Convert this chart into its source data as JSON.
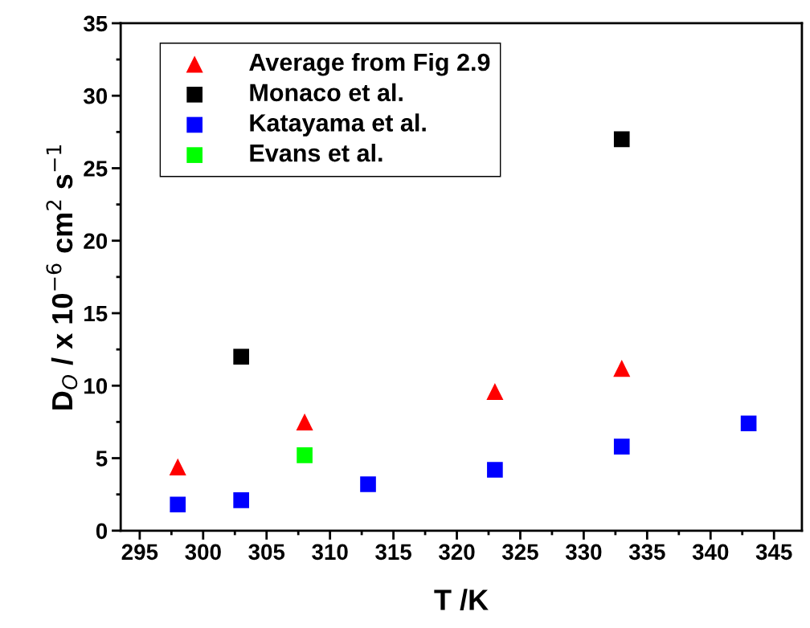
{
  "chart_data": {
    "type": "scatter",
    "xlabel": "T /K",
    "ylabel": "D$_{O}$ / x 10$^{−6}$ cm$^{2}$ s$^{−1}$",
    "xlim": [
      293.5,
      347.2
    ],
    "xticks": [
      295,
      300,
      305,
      310,
      315,
      320,
      325,
      330,
      335,
      340,
      345
    ],
    "ylim": [
      0,
      35
    ],
    "yticks": [
      0,
      5,
      10,
      15,
      20,
      25,
      30,
      35
    ],
    "grid": false,
    "legend": "top left",
    "series": [
      {
        "name": "Average from Fig 2.9",
        "color": "#ff0000",
        "marker": "triangle",
        "x": [
          298,
          308,
          323,
          333
        ],
        "values": [
          4.4,
          7.5,
          9.6,
          11.2
        ]
      },
      {
        "name": "Monaco et al.",
        "color": "#000000",
        "marker": "square",
        "x": [
          303,
          333
        ],
        "values": [
          12,
          27
        ]
      },
      {
        "name": "Katayama et al.",
        "color": "#0000ff",
        "marker": "square",
        "x": [
          298,
          303,
          313,
          323,
          333,
          343
        ],
        "values": [
          1.8,
          2.1,
          3.2,
          4.2,
          5.8,
          7.4
        ]
      },
      {
        "name": "Evans et al.",
        "color": "#00ff00",
        "marker": "square",
        "x": [
          308
        ],
        "values": [
          5.2
        ]
      }
    ]
  }
}
